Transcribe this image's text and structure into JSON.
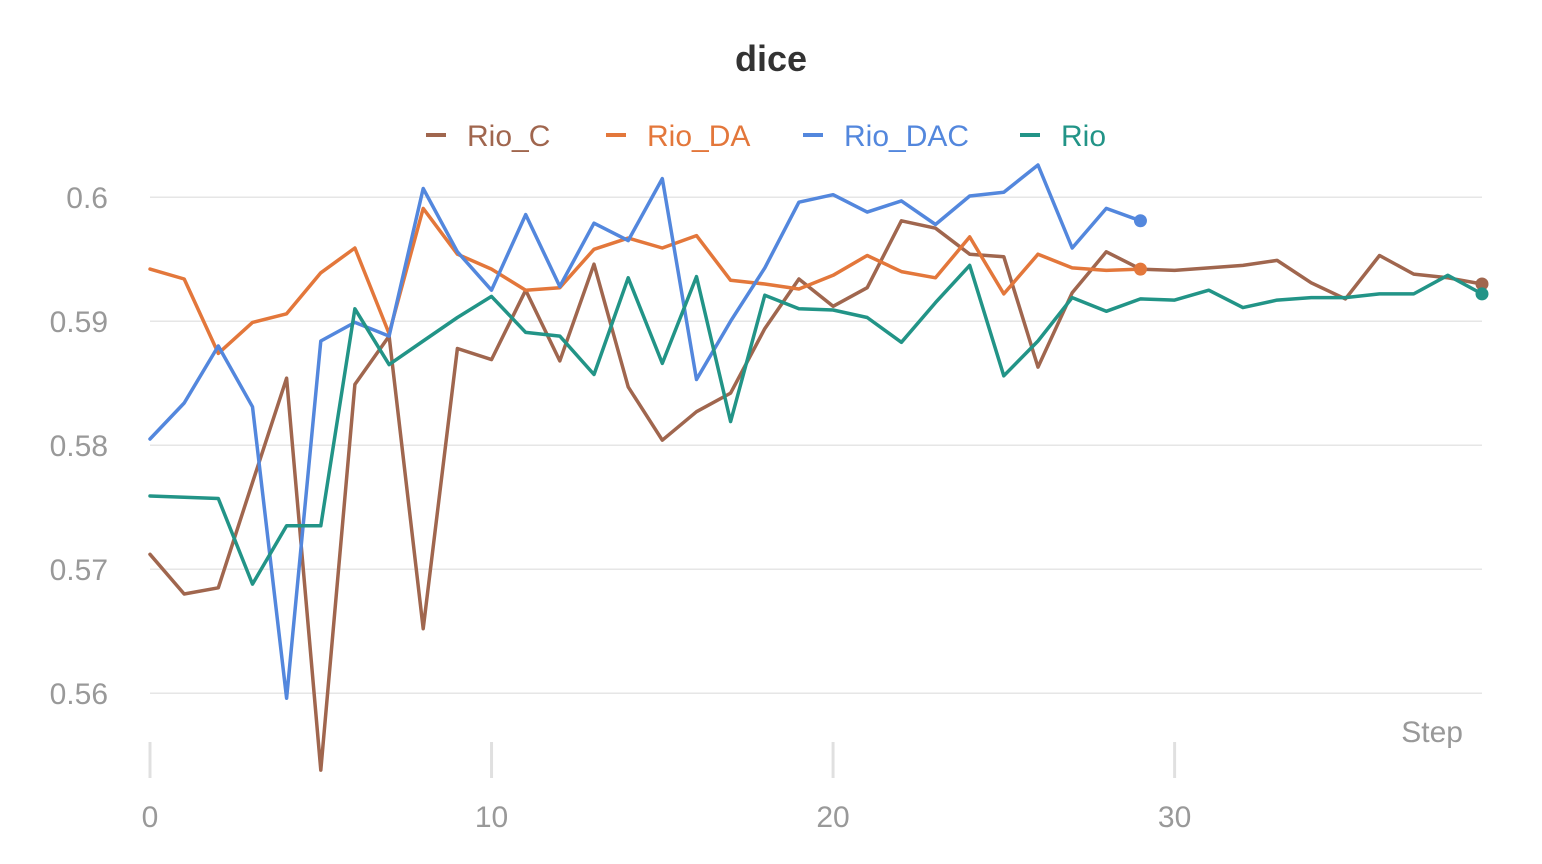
{
  "chart_data": {
    "type": "line",
    "title": "dice",
    "xlabel": "Step",
    "ylabel": "",
    "xlim": [
      0,
      39
    ],
    "ylim": [
      0.553,
      0.603
    ],
    "xticks": [
      0,
      10,
      20,
      30
    ],
    "xtick_labels": [
      "0",
      "10",
      "20",
      "30"
    ],
    "yticks": [
      0.56,
      0.57,
      0.58,
      0.59,
      0.6
    ],
    "ytick_labels": [
      "0.56",
      "0.57",
      "0.58",
      "0.59",
      "0.6"
    ],
    "grid": true,
    "legend_position": "top-center",
    "series": [
      {
        "name": "Rio_C",
        "color": "#a0664e",
        "x": [
          0,
          1,
          2,
          3,
          4,
          5,
          6,
          7,
          8,
          9,
          10,
          11,
          12,
          13,
          14,
          15,
          16,
          17,
          18,
          19,
          20,
          21,
          22,
          23,
          24,
          25,
          26,
          27,
          28,
          29,
          30,
          31,
          32,
          33,
          34,
          35,
          36,
          37,
          38,
          39
        ],
        "values": [
          0.5712,
          0.568,
          0.5685,
          0.577,
          0.5854,
          0.5538,
          0.5849,
          0.5888,
          0.5652,
          0.5878,
          0.5869,
          0.5925,
          0.5868,
          0.5946,
          0.5847,
          0.5804,
          0.5827,
          0.5842,
          0.5894,
          0.5934,
          0.5912,
          0.5927,
          0.5981,
          0.5975,
          0.5954,
          0.5952,
          0.5863,
          0.5923,
          0.5956,
          0.5942,
          0.5941,
          0.5943,
          0.5945,
          0.5949,
          0.5931,
          0.5918,
          0.5953,
          0.5938,
          0.5935,
          0.593
        ]
      },
      {
        "name": "Rio_DA",
        "color": "#e3773b",
        "x": [
          0,
          1,
          2,
          3,
          4,
          5,
          6,
          7,
          8,
          9,
          10,
          11,
          12,
          13,
          14,
          15,
          16,
          17,
          18,
          19,
          20,
          21,
          22,
          23,
          24,
          25,
          26,
          27,
          28,
          29
        ],
        "values": [
          0.5942,
          0.5934,
          0.5874,
          0.5899,
          0.5906,
          0.5939,
          0.5959,
          0.589,
          0.5991,
          0.5954,
          0.5942,
          0.5925,
          0.5927,
          0.5958,
          0.5967,
          0.5959,
          0.5969,
          0.5933,
          0.593,
          0.5926,
          0.5937,
          0.5953,
          0.594,
          0.5935,
          0.5968,
          0.5922,
          0.5954,
          0.5943,
          0.5941,
          0.5942
        ]
      },
      {
        "name": "Rio_DAC",
        "color": "#5387dd",
        "x": [
          0,
          1,
          2,
          3,
          4,
          5,
          6,
          7,
          8,
          9,
          10,
          11,
          12,
          13,
          14,
          15,
          16,
          17,
          18,
          19,
          20,
          21,
          22,
          23,
          24,
          25,
          26,
          27,
          28,
          29
        ],
        "values": [
          0.5805,
          0.5834,
          0.588,
          0.5831,
          0.5596,
          0.5884,
          0.5899,
          0.5888,
          0.6007,
          0.5956,
          0.5925,
          0.5986,
          0.5928,
          0.5979,
          0.5965,
          0.6015,
          0.5853,
          0.59,
          0.5943,
          0.5996,
          0.6002,
          0.5988,
          0.5997,
          0.5978,
          0.6001,
          0.6004,
          0.6026,
          0.5959,
          0.5991,
          0.5981
        ]
      },
      {
        "name": "Rio",
        "color": "#229487",
        "x": [
          0,
          1,
          2,
          3,
          4,
          5,
          6,
          7,
          8,
          9,
          10,
          11,
          12,
          13,
          14,
          15,
          16,
          17,
          18,
          19,
          20,
          21,
          22,
          23,
          24,
          25,
          26,
          27,
          28,
          29,
          30,
          31,
          32,
          33,
          34,
          35,
          36,
          37,
          38,
          39
        ],
        "values": [
          0.5759,
          0.5758,
          0.5757,
          0.5688,
          0.5735,
          0.5735,
          0.591,
          0.5865,
          0.5884,
          0.5903,
          0.592,
          0.5891,
          0.5888,
          0.5857,
          0.5935,
          0.5866,
          0.5936,
          0.5819,
          0.5921,
          0.591,
          0.5909,
          0.5903,
          0.5883,
          0.5915,
          0.5945,
          0.5856,
          0.5884,
          0.5919,
          0.5908,
          0.5918,
          0.5917,
          0.5925,
          0.5911,
          0.5917,
          0.5919,
          0.5919,
          0.5922,
          0.5922,
          0.5937,
          0.5922
        ]
      }
    ]
  }
}
